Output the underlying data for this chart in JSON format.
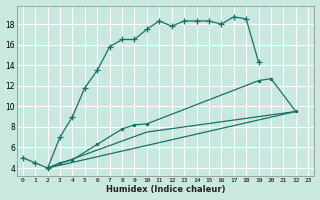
{
  "xlabel": "Humidex (Indice chaleur)",
  "x_ticks": [
    0,
    1,
    2,
    3,
    4,
    5,
    6,
    7,
    8,
    9,
    10,
    11,
    12,
    13,
    14,
    15,
    16,
    17,
    18,
    19,
    20,
    21,
    22,
    23
  ],
  "y_ticks": [
    4,
    6,
    8,
    10,
    12,
    14,
    16,
    18
  ],
  "ylim": [
    3.2,
    19.8
  ],
  "xlim": [
    -0.5,
    23.5
  ],
  "background_color": "#c8e8e0",
  "grid_color": "#ffffff",
  "line_color": "#1a7068",
  "line1_x": [
    0,
    1,
    2,
    3,
    4,
    5,
    6,
    7,
    8,
    9,
    10,
    11,
    12,
    13,
    14,
    15,
    16,
    17,
    18,
    19
  ],
  "line1_y": [
    5.0,
    4.5,
    4.0,
    7.0,
    9.0,
    11.8,
    13.5,
    15.8,
    16.5,
    16.5,
    17.5,
    18.3,
    17.8,
    18.3,
    18.3,
    18.3,
    18.0,
    18.7,
    18.5,
    14.3
  ],
  "line2_x": [
    2,
    3,
    4,
    6,
    8,
    9,
    10,
    19,
    20,
    22
  ],
  "line2_y": [
    4.0,
    4.5,
    4.8,
    6.3,
    7.8,
    8.2,
    8.3,
    12.5,
    12.7,
    9.5
  ],
  "line3_x": [
    2,
    22
  ],
  "line3_y": [
    4.0,
    9.5
  ],
  "line4_x": [
    2,
    10,
    22
  ],
  "line4_y": [
    4.0,
    7.5,
    9.5
  ]
}
